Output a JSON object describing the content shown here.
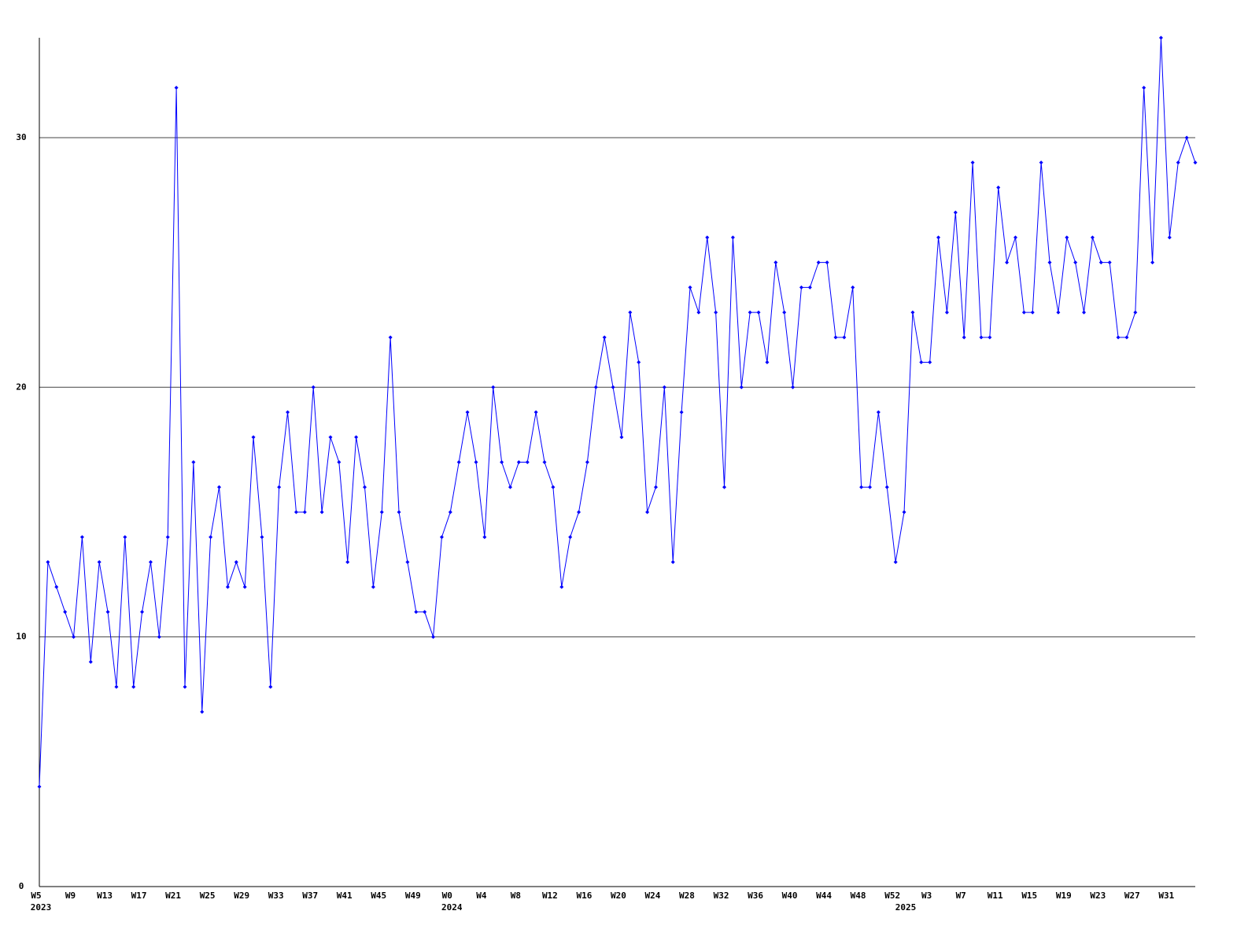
{
  "chart_data": {
    "type": "line",
    "categories": [
      "W5",
      null,
      null,
      null,
      "W9",
      null,
      null,
      null,
      "W13",
      null,
      null,
      null,
      "W17",
      null,
      null,
      null,
      "W21",
      null,
      null,
      null,
      "W25",
      null,
      null,
      null,
      "W29",
      null,
      null,
      null,
      "W33",
      null,
      null,
      null,
      "W37",
      null,
      null,
      null,
      "W41",
      null,
      null,
      null,
      "W45",
      null,
      null,
      null,
      "W49",
      null,
      null,
      null,
      "W0",
      null,
      null,
      null,
      "W4",
      null,
      null,
      null,
      "W8",
      null,
      null,
      null,
      "W12",
      null,
      null,
      null,
      "W16",
      null,
      null,
      null,
      "W20",
      null,
      null,
      null,
      "W24",
      null,
      null,
      null,
      "W28",
      null,
      null,
      null,
      "W32",
      null,
      null,
      null,
      "W36",
      null,
      null,
      null,
      "W40",
      null,
      null,
      null,
      "W44",
      null,
      null,
      null,
      "W48",
      null,
      null,
      null,
      "W52",
      null,
      null,
      null,
      "W3",
      null,
      null,
      null,
      "W7",
      null,
      null,
      null,
      "W11",
      null,
      null,
      null,
      "W15",
      null,
      null,
      null,
      "W19",
      null,
      null,
      null,
      "W23",
      null,
      null,
      null,
      "W27",
      null,
      null,
      null,
      "W31",
      null,
      null,
      null
    ],
    "years": [
      "2023",
      null,
      null,
      null,
      null,
      null,
      null,
      null,
      null,
      null,
      null,
      null,
      null,
      null,
      null,
      null,
      null,
      null,
      null,
      null,
      null,
      null,
      null,
      null,
      null,
      null,
      null,
      null,
      null,
      null,
      null,
      null,
      null,
      null,
      null,
      null,
      null,
      null,
      null,
      null,
      null,
      null,
      null,
      null,
      null,
      null,
      null,
      null,
      "2024",
      null,
      null,
      null,
      null,
      null,
      null,
      null,
      null,
      null,
      null,
      null,
      null,
      null,
      null,
      null,
      null,
      null,
      null,
      null,
      null,
      null,
      null,
      null,
      null,
      null,
      null,
      null,
      null,
      null,
      null,
      null,
      null,
      null,
      null,
      null,
      null,
      null,
      null,
      null,
      null,
      null,
      null,
      null,
      null,
      null,
      null,
      null,
      null,
      null,
      null,
      null,
      null,
      "2025",
      null,
      null,
      null,
      null,
      null,
      null,
      null,
      null,
      null,
      null,
      null,
      null,
      null,
      null,
      null,
      null,
      null,
      null,
      null,
      null,
      null,
      null,
      null,
      null,
      null,
      null,
      null,
      null,
      null,
      null,
      null,
      null,
      null,
      null
    ],
    "series": [
      {
        "color": "#0000ff",
        "values": [
          4,
          13,
          12,
          11,
          10,
          14,
          9,
          13,
          11,
          8,
          14,
          8,
          11,
          13,
          10,
          14,
          32,
          8,
          17,
          7,
          14,
          16,
          12,
          13,
          12,
          18,
          14,
          8,
          16,
          19,
          15,
          15,
          20,
          15,
          18,
          17,
          13,
          18,
          16,
          12,
          15,
          22,
          15,
          13,
          11,
          11,
          10,
          14,
          15,
          17,
          19,
          17,
          14,
          20,
          17,
          16,
          17,
          17,
          19,
          17,
          16,
          12,
          14,
          15,
          17,
          20,
          22,
          20,
          18,
          23,
          21,
          15,
          16,
          20,
          13,
          19,
          24,
          23,
          26,
          23,
          16,
          26,
          20,
          23,
          23,
          21,
          25,
          23,
          20,
          24,
          24,
          25,
          25,
          22,
          22,
          24,
          16,
          16,
          19,
          16,
          13,
          15,
          23,
          21,
          21,
          26,
          23,
          27,
          22,
          29,
          22,
          22,
          28,
          25,
          26,
          23,
          23,
          29,
          25,
          23,
          26,
          25,
          23,
          26,
          25,
          25,
          22,
          22,
          23,
          32,
          25,
          34,
          26,
          29,
          30,
          29
        ]
      }
    ],
    "ylim": [
      0,
      34
    ],
    "yticks": [
      0,
      10,
      20,
      30
    ],
    "grid": true
  }
}
